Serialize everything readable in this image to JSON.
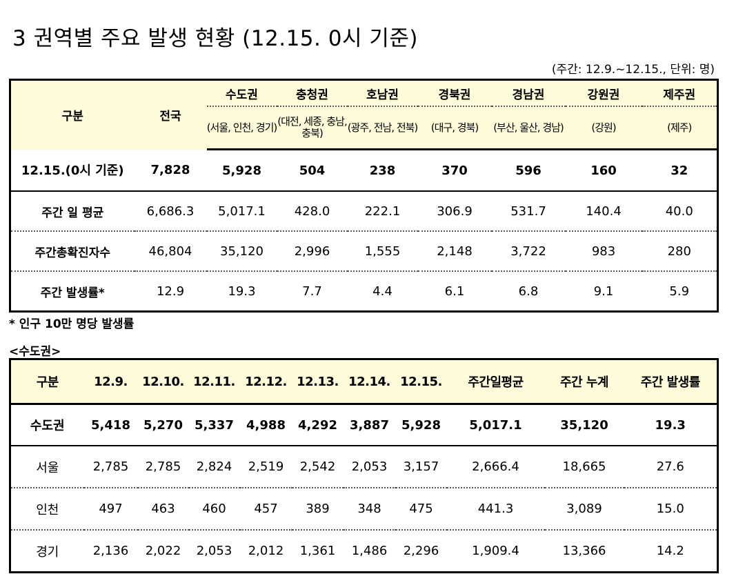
{
  "title": "3  권역별 주요 발생 현황 (12.15. 0시 기준)",
  "unit_note": "(주간: 12.9.~12.15., 단위: 명)",
  "table1": {
    "gubun": "구분",
    "national": "전국",
    "regions": [
      {
        "name": "수도권",
        "sub": "(서울, 인천, 경기)"
      },
      {
        "name": "충청권",
        "sub": "(대전, 세종, 충남, 충북)"
      },
      {
        "name": "호남권",
        "sub": "(광주, 전남, 전북)"
      },
      {
        "name": "경북권",
        "sub": "(대구, 경북)"
      },
      {
        "name": "경남권",
        "sub": "(부산, 울산, 경남)"
      },
      {
        "name": "강원권",
        "sub": "(강원)"
      },
      {
        "name": "제주권",
        "sub": "(제주)"
      }
    ],
    "rows": [
      {
        "label": "12.15.(0시 기준)",
        "values": [
          "7,828",
          "5,928",
          "504",
          "238",
          "370",
          "596",
          "160",
          "32"
        ]
      },
      {
        "label": "주간 일 평균",
        "values": [
          "6,686.3",
          "5,017.1",
          "428.0",
          "222.1",
          "306.9",
          "531.7",
          "140.4",
          "40.0"
        ]
      },
      {
        "label": "주간총확진자수",
        "values": [
          "46,804",
          "35,120",
          "2,996",
          "1,555",
          "2,148",
          "3,722",
          "983",
          "280"
        ]
      },
      {
        "label": "주간 발생률*",
        "values": [
          "12.9",
          "19.3",
          "7.7",
          "4.4",
          "6.1",
          "6.8",
          "9.1",
          "5.9"
        ]
      }
    ]
  },
  "footnote": "* 인구 10만 명당 발생률",
  "capital_title": "<수도권>",
  "table2": {
    "headers": [
      "구분",
      "12.9.",
      "12.10.",
      "12.11.",
      "12.12.",
      "12.13.",
      "12.14.",
      "12.15.",
      "주간일평균",
      "주간 누계",
      "주간 발생률"
    ],
    "rows": [
      {
        "label": "수도권",
        "values": [
          "5,418",
          "5,270",
          "5,337",
          "4,988",
          "4,292",
          "3,887",
          "5,928",
          "5,017.1",
          "35,120",
          "19.3"
        ]
      },
      {
        "label": "서울",
        "values": [
          "2,785",
          "2,785",
          "2,824",
          "2,519",
          "2,542",
          "2,053",
          "3,157",
          "2,666.4",
          "18,665",
          "27.6"
        ]
      },
      {
        "label": "인천",
        "values": [
          "497",
          "463",
          "460",
          "457",
          "389",
          "348",
          "475",
          "441.3",
          "3,089",
          "15.0"
        ]
      },
      {
        "label": "경기",
        "values": [
          "2,136",
          "2,022",
          "2,053",
          "2,012",
          "1,361",
          "1,486",
          "2,296",
          "1,909.4",
          "13,366",
          "14.2"
        ]
      }
    ]
  }
}
